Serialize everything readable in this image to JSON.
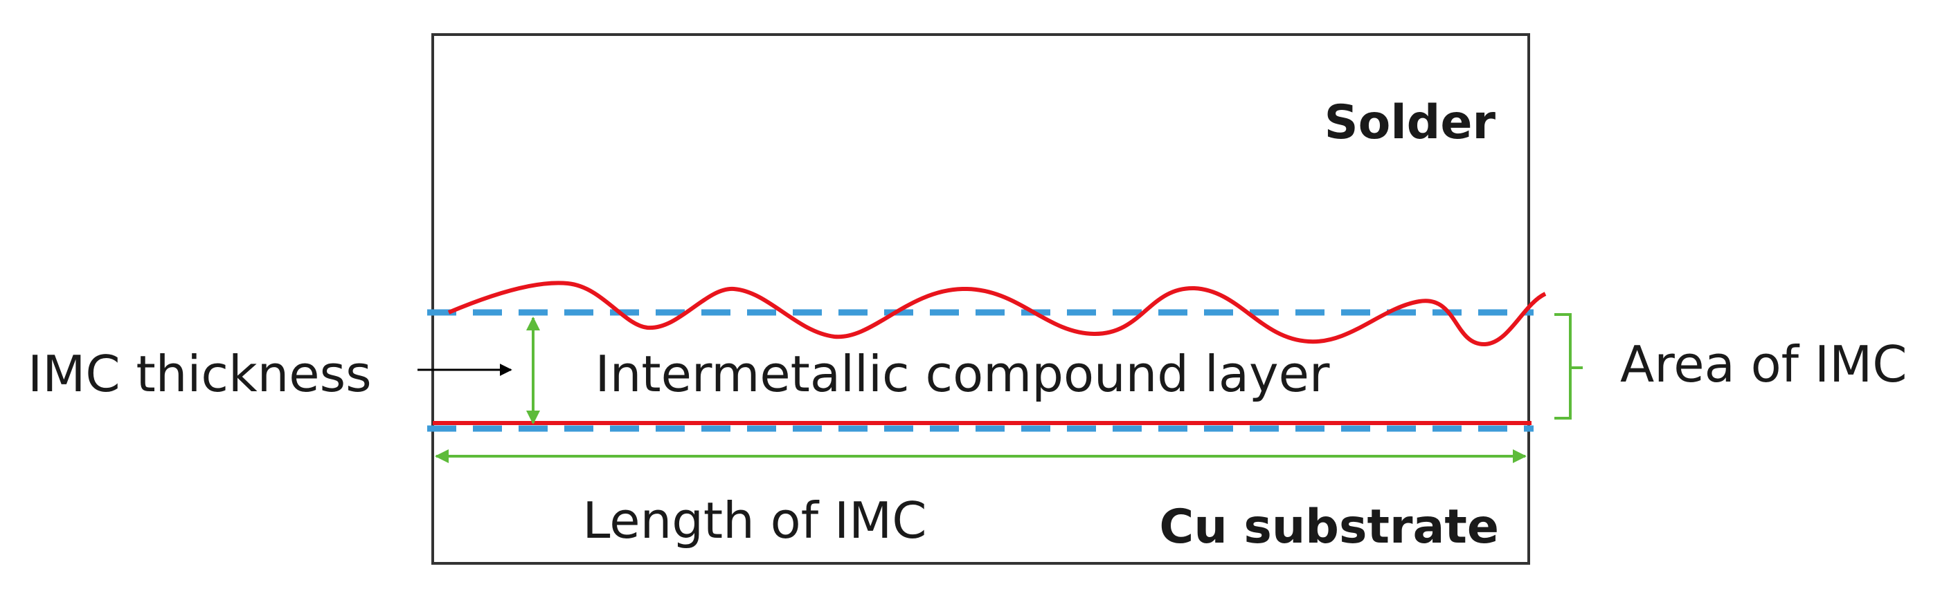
{
  "labels": {
    "solder": "Solder",
    "cu_substrate": "Cu substrate",
    "imc_layer": "Intermetallic compound layer",
    "imc_thickness": "IMC thickness",
    "imc_area": "Area of IMC",
    "imc_length": "Length of IMC"
  },
  "colors": {
    "interface_line": "#e8141c",
    "dashed_boundary": "#3d9bd8",
    "dimension": "#5dbb3a",
    "outline": "#333333",
    "pointer_arrow": "#000000"
  }
}
